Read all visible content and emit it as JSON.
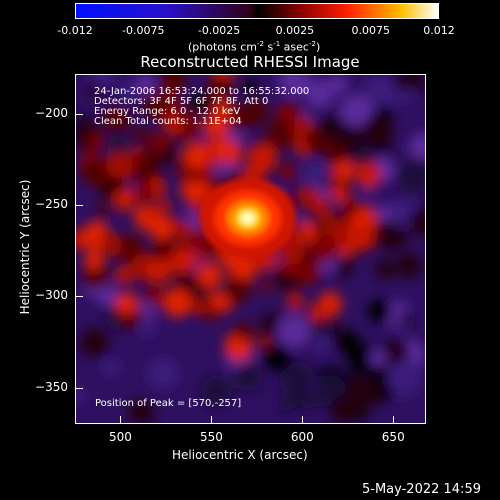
{
  "colorbar": {
    "ticks": [
      "-0.012",
      "-0.0075",
      "-0.0025",
      "0.0025",
      "0.0075",
      "0.012"
    ],
    "unit_main": "(photons cm",
    "unit_sup1": "-2",
    "unit_mid": " s",
    "unit_sup2": "-1",
    "unit_end": " asec",
    "unit_sup3": "-2",
    "unit_close": ")"
  },
  "chart_data": {
    "type": "heatmap",
    "title": "Reconstructed RHESSI Image",
    "xlabel": "Heliocentric X (arcsec)",
    "ylabel": "Heliocentric Y (arcsec)",
    "xlim": [
      475,
      668
    ],
    "ylim": [
      -370,
      -178
    ],
    "xticks": [
      500,
      550,
      600,
      650
    ],
    "yticks": [
      -200,
      -250,
      -300,
      -350
    ],
    "color_range": [
      -0.012,
      0.012
    ],
    "peak": [
      570,
      -257
    ],
    "annotations": {
      "time": "24-Jan-2006 16:53:24.000 to 16:55:32.000",
      "detectors": "Detectors: 3F 4F 5F 6F 7F 8F, Att 0",
      "energy": "Energy Range: 6.0 - 12.0 keV",
      "clean": "Clean    Total counts: 1.11E+04",
      "peak_label": "Position of Peak = [570,-257]"
    }
  },
  "footer": {
    "date": "5-May-2022 14:59"
  }
}
